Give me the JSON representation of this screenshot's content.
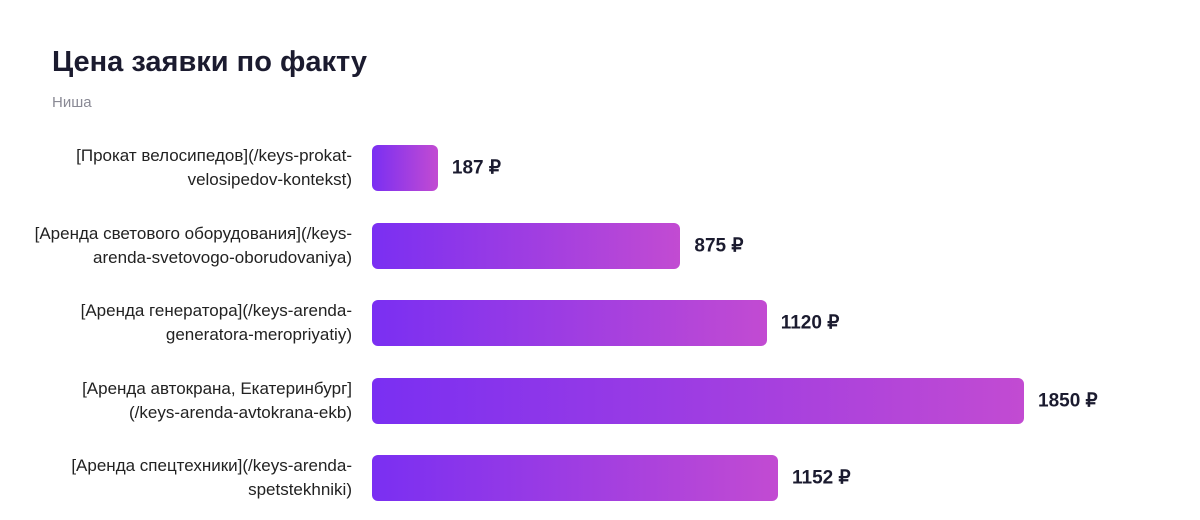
{
  "chart_data": {
    "type": "bar",
    "orientation": "horizontal",
    "title": "Цена заявки по факту",
    "subtitle": "Ниша",
    "categories": [
      "[Прокат велосипедов](/keys-prokat-velosipedov-kontekst)",
      "[Аренда светового оборудования](/keys-arenda-svetovogo-oborudovaniya)",
      "[Аренда генератора](/keys-arenda-generatora-meropriyatiy)",
      "[Аренда автокрана, Екатеринбург](/keys-arenda-avtokrana-ekb)",
      "[Аренда спецтехники](/keys-arenda-spetstekhniki)"
    ],
    "values": [
      187,
      875,
      1120,
      1850,
      1152
    ],
    "value_labels": [
      "187 ₽",
      "875 ₽",
      "1120 ₽",
      "1850 ₽",
      "1152 ₽"
    ],
    "gradient": [
      "#7a2ff2",
      "#c24bd2"
    ]
  }
}
